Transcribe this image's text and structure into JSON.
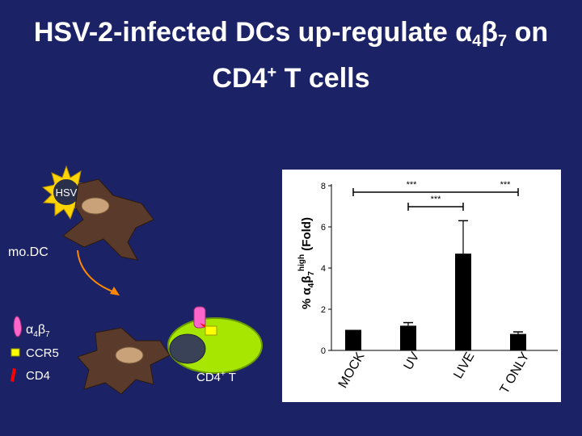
{
  "title": {
    "line1_prefix": "HSV-2-infected DCs up-regulate α",
    "line1_sub1": "4",
    "line1_mid": "β",
    "line1_sub2": "7",
    "line1_suffix": " on",
    "line2_prefix": "CD4",
    "line2_sup": "+",
    "line2_suffix": " T cells"
  },
  "diagram": {
    "virus_label": "HSV",
    "dc_label": "mo.DC",
    "tcell_label": "CD4",
    "tcell_sup": "+",
    "tcell_suffix": " T",
    "legend": [
      {
        "name": "a4b7",
        "label_prefix": "α",
        "label_sub1": "4",
        "label_mid": "β",
        "label_sub2": "7",
        "color": "#ff66cc"
      },
      {
        "name": "ccr5",
        "label": "CCR5",
        "color": "#ffff00"
      },
      {
        "name": "cd4",
        "label": "CD4",
        "color": "#ff0000"
      }
    ]
  },
  "chart_data": {
    "type": "bar",
    "categories": [
      "MOCK",
      "UV",
      "LIVE",
      "T ONLY"
    ],
    "values": [
      1.0,
      1.2,
      4.7,
      0.8
    ],
    "errors": [
      0.0,
      0.15,
      1.6,
      0.1
    ],
    "ylabel_prefix": "% α",
    "ylabel_sub1": "4",
    "ylabel_mid": "β",
    "ylabel_sub2": "7",
    "ylabel_sup": "high",
    "ylabel_suffix": " (Fold)",
    "ylim": [
      0,
      8
    ],
    "yticks": [
      0,
      2,
      4,
      6,
      8
    ],
    "bar_color": "#000000",
    "significance": [
      {
        "label": "***",
        "from": 0,
        "to": 3
      },
      {
        "label": "***",
        "from": 1,
        "to": 2
      }
    ]
  }
}
